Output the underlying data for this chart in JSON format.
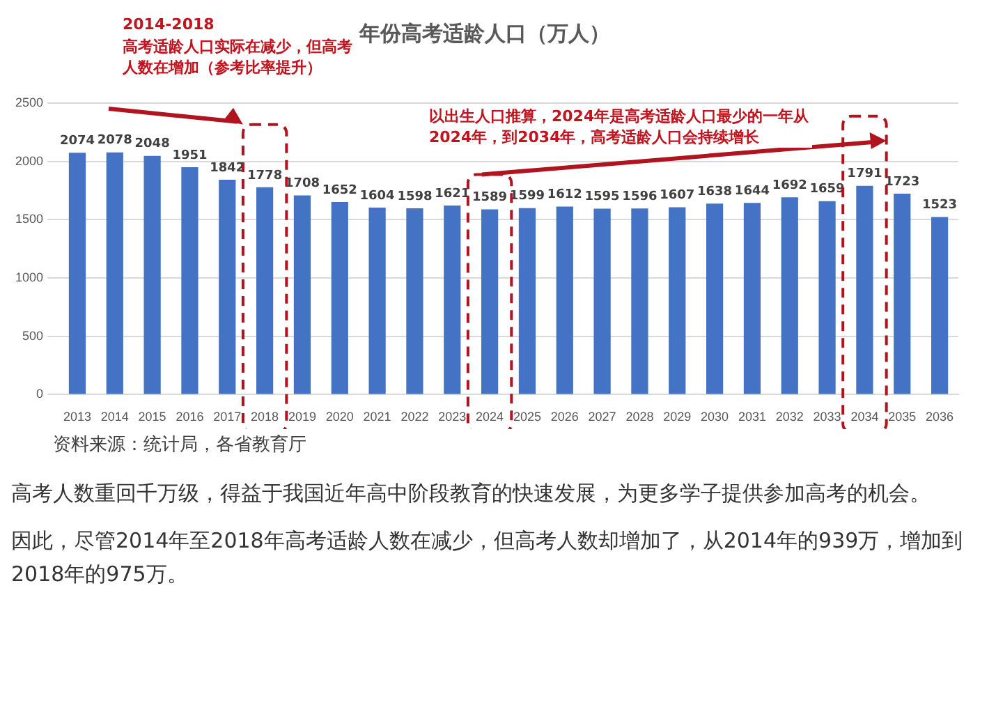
{
  "chart_data": {
    "type": "bar",
    "title": "年份高考适龄人口（万人）",
    "categories": [
      "2013",
      "2014",
      "2015",
      "2016",
      "2017",
      "2018",
      "2019",
      "2020",
      "2021",
      "2022",
      "2023",
      "2024",
      "2025",
      "2026",
      "2027",
      "2028",
      "2029",
      "2030",
      "2031",
      "2032",
      "2033",
      "2034",
      "2035",
      "2036"
    ],
    "values": [
      2074,
      2078,
      2048,
      1951,
      1842,
      1778,
      1708,
      1652,
      1604,
      1598,
      1621,
      1589,
      1599,
      1612,
      1595,
      1596,
      1607,
      1638,
      1644,
      1692,
      1659,
      1791,
      1723,
      1523
    ],
    "color": "#4472c4",
    "ylim": [
      0,
      2500
    ],
    "yticks": [
      0,
      500,
      1000,
      1500,
      2000,
      2500
    ],
    "grid": "y",
    "data_labels": true,
    "annotations": [
      "2014-2018",
      "高考适龄人口实际在减少，但高考人数在增加（参考比率提升）",
      "以出生人口推算，2024年是高考适龄人口最少的一年从2024年，到2034年，高考适龄人口会持续增长",
      "资料来源：统计局，各省教育厅",
      "高考人数重回千万级，得益于我国近年高中阶段教育的快速发展，为更多学子提供参加高考的机会。",
      "因此，尽管2014年至2018年高考适龄人数在减少，但高考人数却增加了，从2014年的939万，增加到2018年的975万。"
    ]
  }
}
